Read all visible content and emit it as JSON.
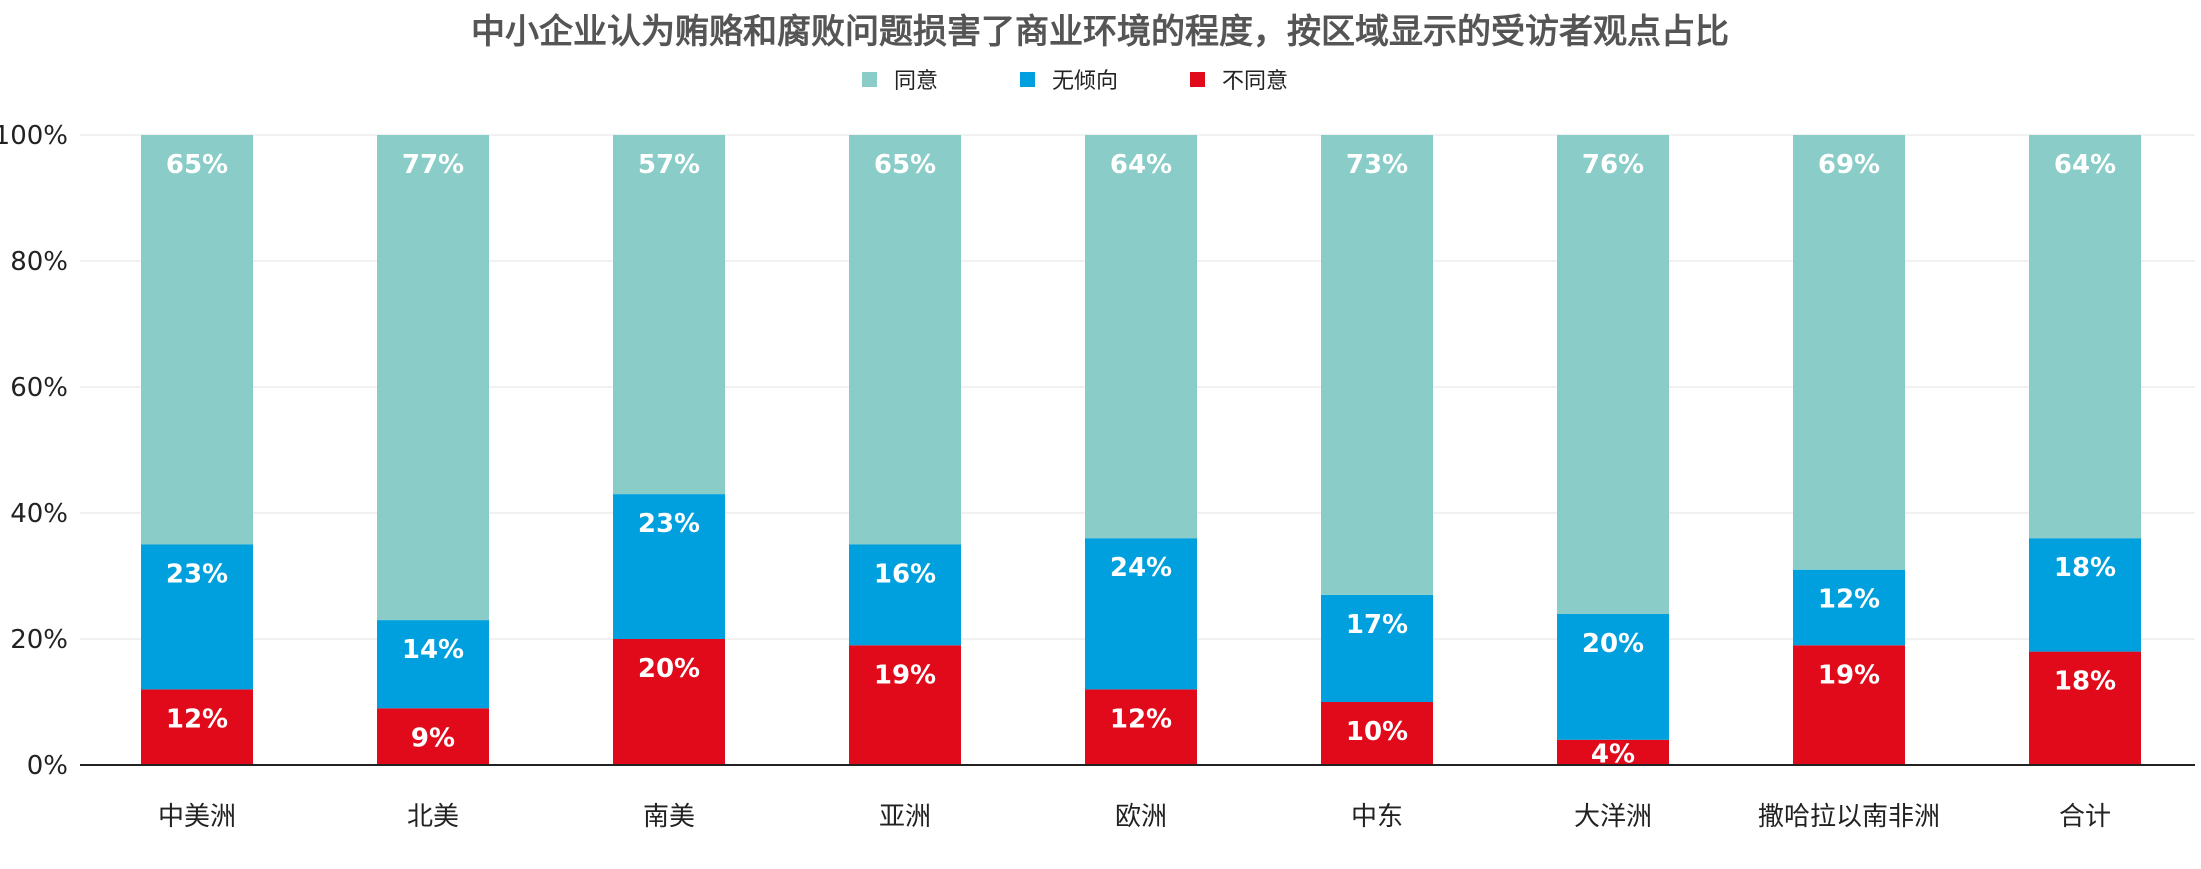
{
  "chart_data": {
    "type": "bar",
    "stacked": true,
    "title": "中小企业认为贿赂和腐败问题损害了商业环境的程度，按区域显示的受访者观点占比",
    "xlabel": "",
    "ylabel": "",
    "ylim": [
      0,
      100
    ],
    "yticks": [
      "0%",
      "20%",
      "40%",
      "60%",
      "80%",
      "100%"
    ],
    "grid": true,
    "legend_position": "top-center",
    "categories": [
      "中美洲",
      "北美",
      "南美",
      "亚洲",
      "欧洲",
      "中东",
      "大洋洲",
      "撒哈拉以南非洲",
      "合计"
    ],
    "series": [
      {
        "name": "不同意",
        "color": "#e10a1a",
        "values": [
          12,
          9,
          20,
          19,
          12,
          10,
          4,
          19,
          18
        ],
        "labels": [
          "12%",
          "9%",
          "20%",
          "19%",
          "12%",
          "10%",
          "4%",
          "19%",
          "18%"
        ]
      },
      {
        "name": "无倾向",
        "color": "#00a0de",
        "values": [
          23,
          14,
          23,
          16,
          24,
          17,
          20,
          12,
          18
        ],
        "labels": [
          "23%",
          "14%",
          "23%",
          "16%",
          "24%",
          "17%",
          "20%",
          "12%",
          "18%"
        ]
      },
      {
        "name": "同意",
        "color": "#89ccc8",
        "values": [
          65,
          77,
          57,
          65,
          64,
          73,
          76,
          69,
          64
        ],
        "labels": [
          "65%",
          "77%",
          "57%",
          "65%",
          "64%",
          "73%",
          "76%",
          "69%",
          "64%"
        ]
      }
    ],
    "legend_order": [
      "同意",
      "无倾向",
      "不同意"
    ]
  }
}
